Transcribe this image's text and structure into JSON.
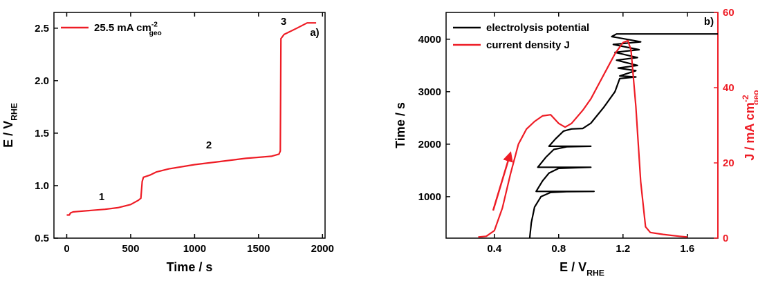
{
  "chart_data": [
    {
      "type": "line",
      "xlabel": "Time / s",
      "ylabel": {
        "text": "E / V",
        "sub": "RHE"
      },
      "xlim": [
        -100,
        2020
      ],
      "ylim": [
        0.5,
        2.65
      ],
      "xticks": [
        0,
        500,
        1000,
        1500,
        2000
      ],
      "yticks": [
        0.5,
        {
          "value": 1,
          "label": "1.0"
        },
        1.5,
        {
          "value": 2,
          "label": "2.0"
        },
        2.5
      ],
      "legend": "upper left",
      "annotations": [
        "1",
        "2",
        "3",
        "a)"
      ],
      "series": [
        {
          "name": {
            "text": "25.5 mA cm",
            "sup": "-2",
            "sub": "geo"
          },
          "color": "#ee1c25",
          "x": [
            0,
            20,
            30,
            50,
            100,
            200,
            300,
            400,
            500,
            560,
            580,
            590,
            600,
            650,
            700,
            800,
            1000,
            1200,
            1400,
            1600,
            1660,
            1670,
            1675,
            1700,
            1800,
            1880,
            1950
          ],
          "values": [
            0.72,
            0.72,
            0.74,
            0.75,
            0.755,
            0.765,
            0.775,
            0.79,
            0.82,
            0.86,
            0.88,
            1.04,
            1.08,
            1.1,
            1.13,
            1.16,
            1.2,
            1.23,
            1.26,
            1.28,
            1.3,
            1.33,
            2.4,
            2.44,
            2.5,
            2.55,
            2.55
          ]
        }
      ]
    },
    {
      "type": "line",
      "xlabel": {
        "text": "E / V",
        "sub": "RHE"
      },
      "ylabel": "Time / s",
      "y2label": {
        "text": "J / mA cm",
        "sup": "-2",
        "sub": "geo"
      },
      "xlim": [
        0.1,
        1.79
      ],
      "ylim": [
        210,
        4510
      ],
      "y2lim": [
        0,
        60
      ],
      "xticks": [
        0.4,
        0.8,
        1.2,
        1.6
      ],
      "yticks": [
        1000,
        2000,
        3000,
        4000
      ],
      "y2ticks": [
        0,
        20,
        40,
        60
      ],
      "legend": "upper left",
      "annotations": [
        "b)"
      ],
      "series": [
        {
          "name": "electrolysis potential",
          "color": "#000000",
          "x": [
            0.62,
            0.63,
            0.65,
            0.69,
            0.75,
            0.85,
            1.02,
            0.66,
            0.7,
            0.74,
            0.8,
            1.0,
            0.67,
            0.72,
            0.77,
            0.85,
            1.0,
            0.74,
            0.78,
            0.83,
            0.88,
            0.95,
            1.0,
            1.08,
            1.15,
            1.18,
            1.28,
            1.18,
            1.28,
            1.17,
            1.29,
            1.16,
            1.29,
            1.15,
            1.3,
            1.14,
            1.31,
            1.13,
            1.16,
            1.79
          ],
          "values": [
            210,
            500,
            800,
            1000,
            1080,
            1095,
            1100,
            1100,
            1300,
            1450,
            1540,
            1560,
            1560,
            1750,
            1900,
            1950,
            1960,
            1960,
            2100,
            2250,
            2290,
            2300,
            2400,
            2700,
            3000,
            3250,
            3280,
            3300,
            3400,
            3450,
            3500,
            3600,
            3650,
            3750,
            3800,
            3900,
            3950,
            4050,
            4100,
            4100
          ]
        },
        {
          "name": "current density J",
          "color": "#ee1c25",
          "axis": "y2",
          "x": [
            0.3,
            0.35,
            0.4,
            0.45,
            0.5,
            0.55,
            0.6,
            0.65,
            0.7,
            0.75,
            0.8,
            0.84,
            0.88,
            0.95,
            1.0,
            1.05,
            1.1,
            1.15,
            1.2,
            1.23,
            1.25,
            1.28,
            1.31,
            1.34,
            1.37,
            1.45,
            1.55,
            1.6
          ],
          "values": [
            0.3,
            0.5,
            2,
            8,
            17,
            25,
            29,
            31,
            32.5,
            32.8,
            30.5,
            29.5,
            30.5,
            34,
            37,
            41,
            45,
            49,
            52,
            52.5,
            50,
            35,
            15,
            3,
            1.5,
            1,
            0.5,
            0.3
          ]
        }
      ]
    }
  ]
}
